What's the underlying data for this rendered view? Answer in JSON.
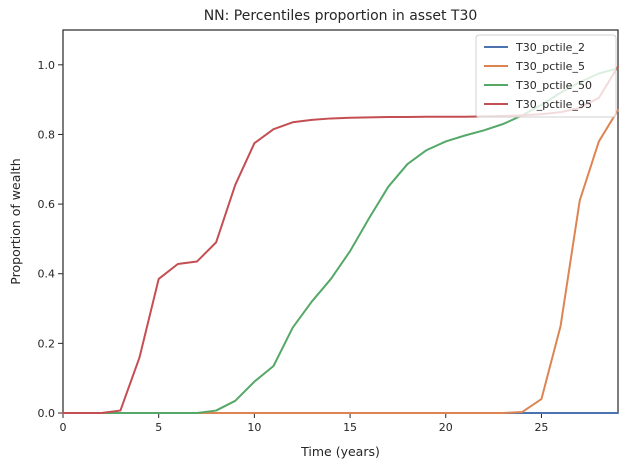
{
  "chart_data": {
    "type": "line",
    "title": "NN: Percentiles proportion in asset T30",
    "xlabel": "Time (years)",
    "ylabel": "Proportion of wealth",
    "xlim": [
      0,
      29
    ],
    "ylim": [
      0,
      1.1
    ],
    "xticks": [
      0,
      5,
      10,
      15,
      20,
      25
    ],
    "yticks": [
      0.0,
      0.2,
      0.4,
      0.6,
      0.8,
      1.0
    ],
    "xtick_labels": [
      "0",
      "5",
      "10",
      "15",
      "20",
      "25"
    ],
    "ytick_labels": [
      "0.0",
      "0.2",
      "0.4",
      "0.6",
      "0.8",
      "1.0"
    ],
    "grid": false,
    "legend_position": "top-right",
    "x": [
      0,
      1,
      2,
      3,
      4,
      5,
      6,
      7,
      8,
      9,
      10,
      11,
      12,
      13,
      14,
      15,
      16,
      17,
      18,
      19,
      20,
      21,
      22,
      23,
      24,
      25,
      26,
      27,
      28,
      29
    ],
    "series": [
      {
        "name": "T30_pctile_2",
        "color": "#4c72b0",
        "values": [
          0,
          0,
          0,
          0,
          0,
          0,
          0,
          0,
          0,
          0,
          0,
          0,
          0,
          0,
          0,
          0,
          0,
          0,
          0,
          0,
          0,
          0,
          0,
          0,
          0,
          0,
          0,
          0,
          0,
          0
        ]
      },
      {
        "name": "T30_pctile_5",
        "color": "#dd8452",
        "values": [
          0,
          0,
          0,
          0,
          0,
          0,
          0,
          0,
          0,
          0,
          0,
          0,
          0,
          0,
          0,
          0,
          0,
          0,
          0,
          0,
          0,
          0,
          0,
          0,
          0.003,
          0.04,
          0.25,
          0.61,
          0.78,
          0.87
        ]
      },
      {
        "name": "T30_pctile_50",
        "color": "#55a868",
        "values": [
          0,
          0,
          0,
          0,
          0,
          0,
          0,
          0,
          0.007,
          0.035,
          0.09,
          0.135,
          0.245,
          0.32,
          0.385,
          0.465,
          0.56,
          0.65,
          0.715,
          0.755,
          0.78,
          0.797,
          0.812,
          0.83,
          0.855,
          0.885,
          0.92,
          0.95,
          0.975,
          0.99
        ]
      },
      {
        "name": "T30_pctile_95",
        "color": "#c44e52",
        "values": [
          0,
          0,
          0,
          0.007,
          0.16,
          0.385,
          0.428,
          0.435,
          0.49,
          0.655,
          0.775,
          0.815,
          0.835,
          0.842,
          0.846,
          0.848,
          0.849,
          0.85,
          0.85,
          0.851,
          0.851,
          0.851,
          0.852,
          0.853,
          0.855,
          0.858,
          0.864,
          0.876,
          0.905,
          0.995
        ]
      }
    ]
  }
}
